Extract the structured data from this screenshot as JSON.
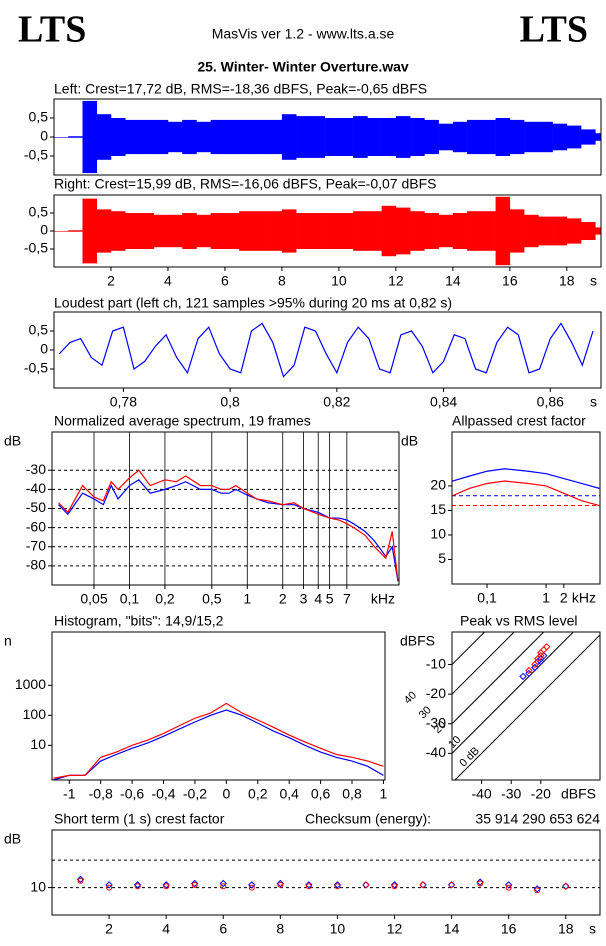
{
  "header": {
    "logo_left": "LTS",
    "program": "MasVis ver 1.2 - www.lts.a.se",
    "logo_right": "LTS",
    "file": "25. Winter- Winter Overture.wav",
    "checksum_label": "Checksum (energy):",
    "checksum": "35 914 290 653 624"
  },
  "chart_data": [
    {
      "type": "envelope",
      "title": "Left: Crest=17,72 dB, RMS=-18,36 dBFS, Peak=-0,65 dBFS",
      "x": [
        0,
        0.5,
        1,
        1.5,
        2,
        2.5,
        3,
        3.5,
        4,
        4.5,
        5,
        5.5,
        6,
        6.5,
        7,
        7.5,
        8,
        8.5,
        9,
        9.5,
        10,
        10.5,
        11,
        11.5,
        12,
        12.5,
        13,
        13.5,
        14,
        14.5,
        15,
        15.5,
        16,
        16.5,
        17,
        17.5,
        18,
        18.5,
        19
      ],
      "series": [
        {
          "color": "#0000ff",
          "values": [
            0,
            0.02,
            0.95,
            0.6,
            0.5,
            0.45,
            0.45,
            0.45,
            0.4,
            0.45,
            0.4,
            0.45,
            0.45,
            0.45,
            0.45,
            0.45,
            0.6,
            0.55,
            0.55,
            0.5,
            0.5,
            0.55,
            0.5,
            0.5,
            0.55,
            0.5,
            0.45,
            0.35,
            0.4,
            0.45,
            0.45,
            0.5,
            0.45,
            0.4,
            0.4,
            0.35,
            0.3,
            0.2,
            0.1
          ]
        }
      ],
      "xlim": [
        0,
        19.2
      ],
      "ylim": [
        -1,
        1
      ],
      "yticks": [
        {
          "value": 0.5,
          "label": "0,5"
        },
        0,
        {
          "value": -0.5,
          "label": "-0,5"
        }
      ]
    },
    {
      "type": "envelope",
      "title": "Right: Crest=15,99 dB, RMS=-16,06 dBFS, Peak=-0,07 dBFS",
      "x": [
        0,
        0.5,
        1,
        1.5,
        2,
        2.5,
        3,
        3.5,
        4,
        4.5,
        5,
        5.5,
        6,
        6.5,
        7,
        7.5,
        8,
        8.5,
        9,
        9.5,
        10,
        10.5,
        11,
        11.5,
        12,
        12.5,
        13,
        13.5,
        14,
        14.5,
        15,
        15.5,
        16,
        16.5,
        17,
        17.5,
        18,
        18.5,
        19
      ],
      "series": [
        {
          "color": "#ff0000",
          "values": [
            0,
            0.02,
            0.9,
            0.6,
            0.55,
            0.5,
            0.5,
            0.45,
            0.45,
            0.5,
            0.45,
            0.5,
            0.5,
            0.55,
            0.55,
            0.55,
            0.6,
            0.5,
            0.5,
            0.5,
            0.5,
            0.55,
            0.55,
            0.7,
            0.65,
            0.55,
            0.5,
            0.45,
            0.5,
            0.55,
            0.55,
            0.95,
            0.6,
            0.45,
            0.4,
            0.4,
            0.35,
            0.25,
            0.1
          ]
        }
      ],
      "xlim": [
        0,
        19.2
      ],
      "ylim": [
        -1,
        1
      ],
      "yticks": [
        {
          "value": 0.5,
          "label": "0,5"
        },
        0,
        {
          "value": -0.5,
          "label": "-0,5"
        }
      ],
      "xticks": [
        2,
        4,
        6,
        8,
        10,
        12,
        14,
        16,
        18
      ],
      "x_label": "s"
    },
    {
      "type": "line",
      "title": "Loudest part (left  ch, 121 samples >95% during 20 ms at 0,82 s)",
      "x": [
        0.768,
        0.77,
        0.772,
        0.774,
        0.776,
        0.778,
        0.78,
        0.782,
        0.784,
        0.786,
        0.788,
        0.79,
        0.792,
        0.794,
        0.796,
        0.798,
        0.8,
        0.802,
        0.804,
        0.806,
        0.808,
        0.81,
        0.812,
        0.814,
        0.816,
        0.818,
        0.82,
        0.822,
        0.824,
        0.826,
        0.828,
        0.83,
        0.832,
        0.834,
        0.836,
        0.838,
        0.84,
        0.842,
        0.844,
        0.846,
        0.848,
        0.85,
        0.852,
        0.854,
        0.856,
        0.858,
        0.86,
        0.862,
        0.864,
        0.866,
        0.868
      ],
      "series": [
        {
          "color": "#0000ff",
          "values": [
            -0.1,
            0.2,
            0.3,
            -0.2,
            -0.4,
            0.5,
            0.6,
            -0.5,
            -0.3,
            0.1,
            0.4,
            -0.2,
            -0.6,
            0.3,
            0.6,
            -0.1,
            -0.5,
            -0.6,
            0.5,
            0.7,
            0.2,
            -0.7,
            -0.4,
            0.6,
            0.5,
            -0.1,
            -0.6,
            0.2,
            0.6,
            0.3,
            -0.5,
            -0.6,
            0.4,
            0.5,
            0.1,
            -0.6,
            -0.3,
            0.4,
            0.3,
            -0.5,
            -0.6,
            0.2,
            0.6,
            0.4,
            -0.6,
            -0.5,
            0.3,
            0.7,
            0.2,
            -0.4,
            0.5
          ]
        }
      ],
      "xlim": [
        0.767,
        0.8695
      ],
      "ylim": [
        -1,
        1
      ],
      "yticks": [
        {
          "value": 0.5,
          "label": "0,5"
        },
        0,
        {
          "value": -0.5,
          "label": "-0,5"
        }
      ],
      "xticks": [
        {
          "value": 0.78,
          "label": "0,78"
        },
        {
          "value": 0.8,
          "label": "0,8"
        },
        {
          "value": 0.82,
          "label": "0,82"
        },
        {
          "value": 0.84,
          "label": "0,84"
        },
        {
          "value": 0.86,
          "label": "0,86"
        }
      ],
      "x_label": "s"
    },
    {
      "type": "line",
      "title": "Normalized average spectrum, 19 frames",
      "xlog": true,
      "grid": true,
      "x": [
        0.025,
        0.03,
        0.04,
        0.05,
        0.06,
        0.07,
        0.08,
        0.1,
        0.12,
        0.15,
        0.2,
        0.25,
        0.3,
        0.4,
        0.5,
        0.6,
        0.7,
        0.8,
        1,
        1.2,
        1.5,
        2,
        2.5,
        3,
        4,
        5,
        6,
        7,
        8,
        10,
        12,
        15,
        17,
        19
      ],
      "series": [
        {
          "color": "#0000ff",
          "values": [
            -48,
            -53,
            -42,
            -45,
            -48,
            -38,
            -45,
            -38,
            -35,
            -42,
            -40,
            -38,
            -36,
            -40,
            -40,
            -42,
            -42,
            -40,
            -43,
            -45,
            -47,
            -48,
            -48,
            -50,
            -52,
            -55,
            -55,
            -56,
            -58,
            -62,
            -67,
            -75,
            -70,
            -88
          ]
        },
        {
          "color": "#ff0000",
          "values": [
            -47,
            -52,
            -38,
            -44,
            -46,
            -36,
            -40,
            -34,
            -30,
            -38,
            -35,
            -36,
            -33,
            -38,
            -38,
            -40,
            -40,
            -38,
            -42,
            -45,
            -46,
            -48,
            -47,
            -50,
            -53,
            -55,
            -56,
            -58,
            -60,
            -64,
            -70,
            -76,
            -62,
            -88
          ]
        }
      ],
      "xlim": [
        0.022,
        19.4
      ],
      "ylim": [
        -90,
        -10
      ],
      "yticks": [
        -30,
        -40,
        -50,
        -60,
        -70,
        -80
      ],
      "y_label": "dB",
      "xticks": [
        {
          "value": 0.05,
          "label": "0,05"
        },
        {
          "value": 0.1,
          "label": "0,1"
        },
        {
          "value": 0.2,
          "label": "0,2"
        },
        {
          "value": 0.5,
          "label": "0,5"
        },
        1,
        2,
        3,
        4,
        5,
        7
      ],
      "x_label": "kHz"
    },
    {
      "type": "line",
      "title": "Allpassed crest factor",
      "xlog": true,
      "x": [
        0.026,
        0.05,
        0.1,
        0.2,
        0.5,
        1,
        2,
        4,
        8
      ],
      "series": [
        {
          "color": "#0000ff",
          "values": [
            21,
            22,
            23,
            23.5,
            23,
            22.5,
            21.5,
            20.5,
            19.5
          ],
          "ref": 18
        },
        {
          "color": "#ff0000",
          "values": [
            18,
            19.5,
            20.5,
            21,
            20.5,
            20,
            18.5,
            17,
            16
          ],
          "ref": 16
        }
      ],
      "xlim": [
        0.0255,
        8.2
      ],
      "ylim": [
        0,
        31
      ],
      "yticks": [
        20,
        15,
        10,
        5
      ],
      "y_label": "dB",
      "xticks": [
        {
          "value": 0.1,
          "label": "0,1"
        },
        1,
        2
      ],
      "x_label": "kHz"
    },
    {
      "type": "line",
      "title": "Histogram, \"bits\": 14,9/15,2",
      "ylog": true,
      "x": [
        -1.1,
        -1.0,
        -0.9,
        -0.8,
        -0.7,
        -0.6,
        -0.5,
        -0.4,
        -0.3,
        -0.2,
        -0.1,
        0,
        0.1,
        0.2,
        0.3,
        0.4,
        0.5,
        0.6,
        0.7,
        0.8,
        0.9,
        1.0
      ],
      "series": [
        {
          "color": "#0000ff",
          "values": [
            0.7,
            1,
            1,
            3,
            5,
            8,
            12,
            20,
            35,
            60,
            100,
            150,
            100,
            55,
            30,
            18,
            10,
            6,
            4,
            3,
            2,
            1
          ]
        },
        {
          "color": "#ff0000",
          "values": [
            0.8,
            1,
            1,
            4,
            6,
            10,
            15,
            25,
            45,
            80,
            120,
            250,
            120,
            70,
            40,
            22,
            13,
            8,
            5,
            4,
            3,
            2
          ]
        }
      ],
      "xlim": [
        -1.11,
        1.01
      ],
      "ylim": [
        0.7,
        60000
      ],
      "yticks": [
        1000,
        100,
        10
      ],
      "y_label": "n",
      "xticks": [
        -1,
        {
          "value": -0.8,
          "label": "-0,8"
        },
        {
          "value": -0.6,
          "label": "-0,6"
        },
        {
          "value": -0.4,
          "label": "-0,4"
        },
        {
          "value": -0.2,
          "label": "-0,2"
        },
        0,
        {
          "value": 0.2,
          "label": "0,2"
        },
        {
          "value": 0.4,
          "label": "0,4"
        },
        {
          "value": 0.6,
          "label": "0,6"
        },
        {
          "value": 0.8,
          "label": "0,8"
        },
        1
      ]
    },
    {
      "type": "scatter",
      "title": "Peak vs RMS level",
      "marker": "diamond",
      "series": [
        {
          "color": "#0000ff",
          "x": [
            -26,
            -24,
            -22,
            -21,
            -20,
            -19,
            -22,
            -20
          ],
          "values": [
            -14,
            -13,
            -11,
            -9,
            -8,
            -7,
            -11,
            -9
          ]
        },
        {
          "color": "#ff0000",
          "x": [
            -24,
            -22,
            -21,
            -20,
            -19,
            -18,
            -20
          ],
          "values": [
            -12,
            -10,
            -8,
            -7,
            -5,
            -4,
            -6
          ]
        }
      ],
      "diagonals": [
        40,
        30,
        20,
        10,
        {
          "value": 0,
          "label": "0 dB"
        }
      ],
      "xlim": [
        -50,
        0
      ],
      "ylim": [
        -49,
        1
      ],
      "yticks": [
        -10,
        -20,
        -30,
        -40
      ],
      "y_label": "dBFS",
      "xticks": [
        -40,
        -30,
        -20
      ],
      "x_label": "dBFS"
    },
    {
      "type": "scatter",
      "title": "Short term (1 s) crest factor",
      "grid": true,
      "series": [
        {
          "color": "#0000ff",
          "x": [
            1,
            2,
            3,
            4,
            5,
            6,
            7,
            8,
            9,
            10,
            11,
            12,
            13,
            14,
            15,
            16,
            17,
            18
          ],
          "values": [
            13,
            11,
            11,
            11,
            11.5,
            11.5,
            11,
            11.5,
            11,
            11,
            11,
            11,
            11,
            11,
            12,
            11,
            9.5,
            10.5
          ]
        },
        {
          "color": "#ff0000",
          "x": [
            1,
            2,
            3,
            4,
            5,
            6,
            7,
            8,
            9,
            10,
            11,
            12,
            13,
            14,
            15,
            16,
            17,
            18
          ],
          "values": [
            12.5,
            10,
            10.5,
            10.5,
            11,
            10.5,
            10,
            11,
            10.5,
            10.5,
            11,
            10.5,
            11,
            11,
            11.5,
            10,
            9,
            10.5
          ]
        }
      ],
      "xlim": [
        0,
        19.2
      ],
      "ylim": [
        0,
        31
      ],
      "yticks": [
        10
      ],
      "gridlines": [
        10,
        20
      ],
      "y_label": "dB",
      "xticks": [
        2,
        4,
        6,
        8,
        10,
        12,
        14,
        16,
        18
      ],
      "x_label": "s"
    }
  ]
}
